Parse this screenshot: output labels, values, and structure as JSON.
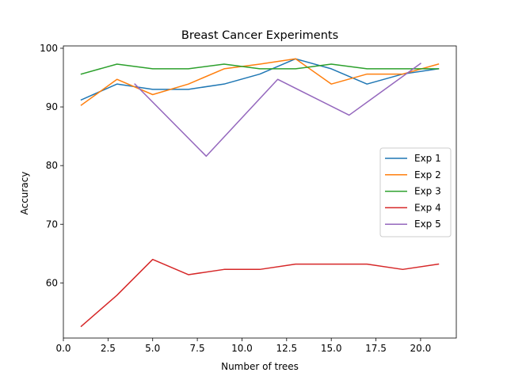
{
  "chart_data": {
    "type": "line",
    "title": "Breast Cancer Experiments",
    "xlabel": "Number of trees",
    "ylabel": "Accuracy",
    "xlim": [
      0,
      22
    ],
    "ylim": [
      50.6,
      100.4
    ],
    "xticks": [
      0,
      2.5,
      5,
      7.5,
      10,
      12.5,
      15,
      17.5,
      20
    ],
    "xtick_labels": [
      "0.0",
      "2.5",
      "5.0",
      "7.5",
      "10.0",
      "12.5",
      "15.0",
      "17.5",
      "20.0"
    ],
    "yticks": [
      60,
      70,
      80,
      90,
      100
    ],
    "ytick_labels": [
      "60",
      "70",
      "80",
      "90",
      "100"
    ],
    "grid": false,
    "legend_position": "center-right",
    "series": [
      {
        "name": "Exp 1",
        "color": "#1f77b4",
        "x": [
          1,
          3,
          5,
          7,
          9,
          11,
          13,
          15,
          17,
          19,
          21
        ],
        "y": [
          91.2,
          93.9,
          93.0,
          93.0,
          93.9,
          95.6,
          98.2,
          96.5,
          93.9,
          95.6,
          96.5
        ]
      },
      {
        "name": "Exp 2",
        "color": "#ff7f0e",
        "x": [
          1,
          3,
          5,
          7,
          9,
          11,
          13,
          15,
          17,
          19,
          21
        ],
        "y": [
          90.3,
          94.7,
          92.1,
          93.9,
          96.5,
          97.3,
          98.2,
          93.9,
          95.6,
          95.6,
          97.3
        ]
      },
      {
        "name": "Exp 3",
        "color": "#2ca02c",
        "x": [
          1,
          3,
          5,
          7,
          9,
          11,
          13,
          15,
          17,
          19,
          21
        ],
        "y": [
          95.6,
          97.3,
          96.5,
          96.5,
          97.3,
          96.5,
          96.5,
          97.3,
          96.5,
          96.5,
          96.5
        ]
      },
      {
        "name": "Exp 4",
        "color": "#d62728",
        "x": [
          1,
          3,
          5,
          7,
          9,
          11,
          13,
          15,
          17,
          19,
          21
        ],
        "y": [
          52.6,
          57.9,
          64.0,
          61.4,
          62.3,
          62.3,
          63.2,
          63.2,
          63.2,
          62.3,
          63.2
        ]
      },
      {
        "name": "Exp 5",
        "color": "#9467bd",
        "x": [
          4,
          8,
          12,
          16,
          20
        ],
        "y": [
          93.9,
          81.6,
          94.7,
          88.6,
          97.4
        ]
      }
    ]
  }
}
